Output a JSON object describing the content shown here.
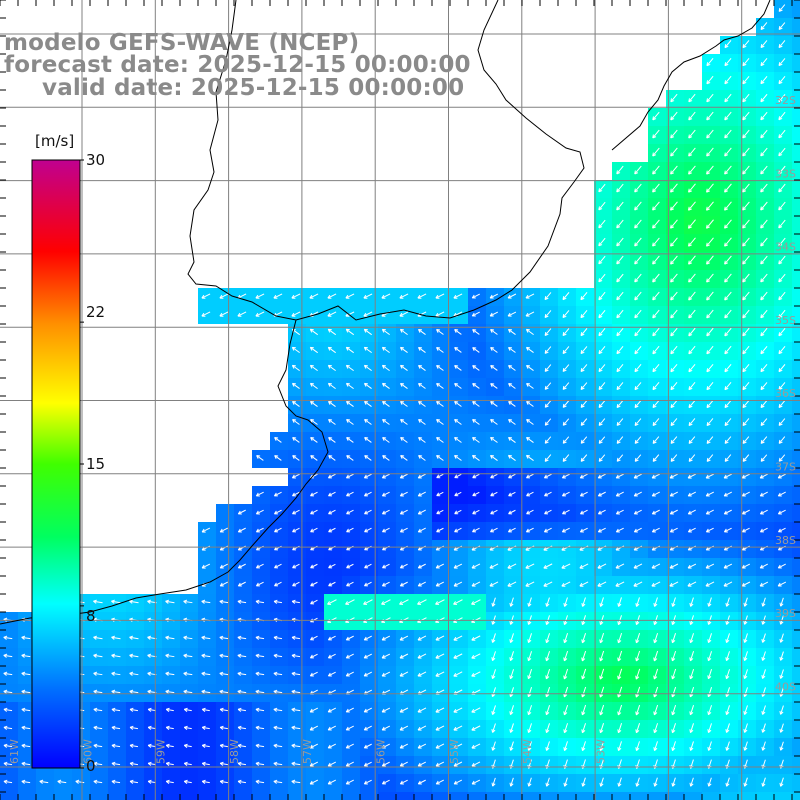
{
  "header": {
    "line1": "modelo GEFS-WAVE (NCEP)",
    "line2": "forecast date: 2025-12-15 00:00:00",
    "line3": "valid date: 2025-12-15 00:00:00"
  },
  "colorbar": {
    "units": "[m/s]",
    "ticks": [
      "30",
      "22",
      "15",
      "8",
      "0"
    ],
    "tick_values": [
      30,
      22,
      15,
      8,
      0
    ],
    "range": [
      0,
      30
    ],
    "colors": [
      "#0000ff",
      "#00a0ff",
      "#00ffff",
      "#00ff40",
      "#40ff00",
      "#ffff00",
      "#ff8000",
      "#ff0000",
      "#c00080"
    ]
  },
  "graticule": {
    "lat_labels": [
      "32S",
      "33S",
      "34S",
      "35S",
      "36S",
      "37S",
      "38S",
      "39S",
      "40S"
    ],
    "lon_labels": [
      "61W",
      "60W",
      "59W",
      "58W",
      "57W",
      "56W",
      "55W",
      "54W",
      "53W"
    ]
  },
  "colors": {
    "land": "#ffffff",
    "coast": "#000000",
    "grid": "#808080",
    "arrow": "#ffffff",
    "title": "#8a8a8a"
  }
}
